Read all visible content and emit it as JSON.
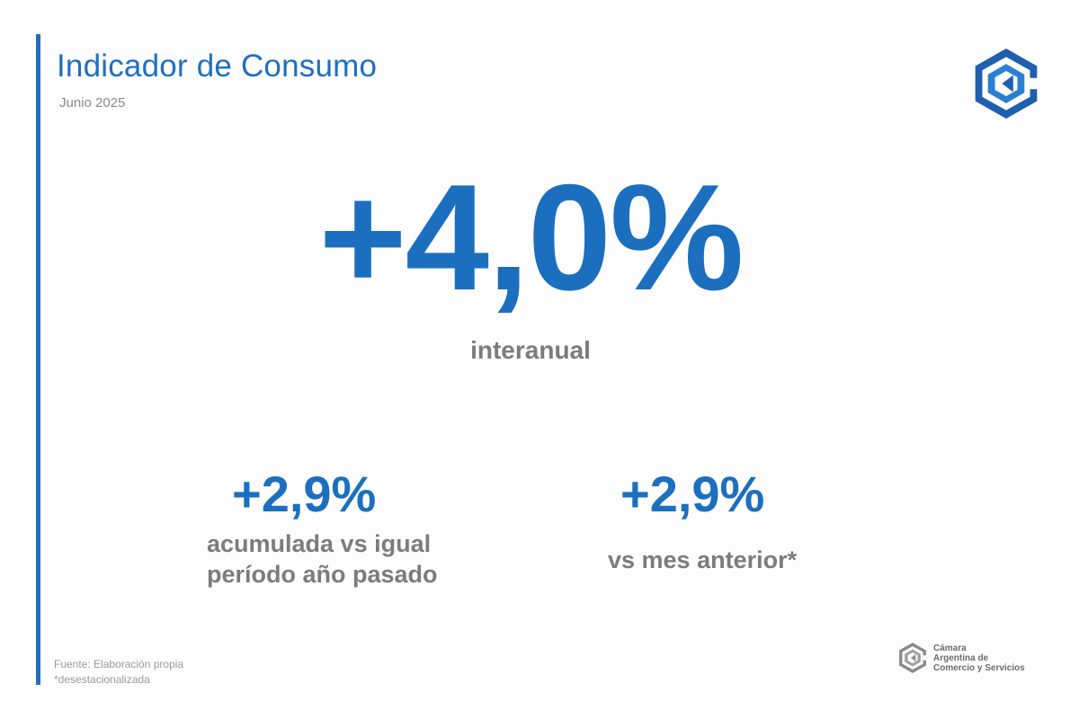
{
  "header": {
    "title": "Indicador de Consumo",
    "subtitle": "Junio 2025"
  },
  "main_stat": {
    "value": "+4,0%",
    "label": "interanual"
  },
  "stats": [
    {
      "value": "+2,9%",
      "label_line1": "acumulada vs igual",
      "label_line2": "período año pasado"
    },
    {
      "value": "+2,9%",
      "label": "vs mes anterior*"
    }
  ],
  "footer": {
    "source": "Fuente: Elaboración propia",
    "note": "*desestacionalizada"
  },
  "organization": {
    "line1": "Cámara",
    "line2": "Argentina de",
    "line3": "Comercio y Servicios"
  },
  "colors": {
    "accent": "#1f6fc0",
    "value_blue": "#1b6fbe",
    "label_gray": "#7c7c7c"
  }
}
